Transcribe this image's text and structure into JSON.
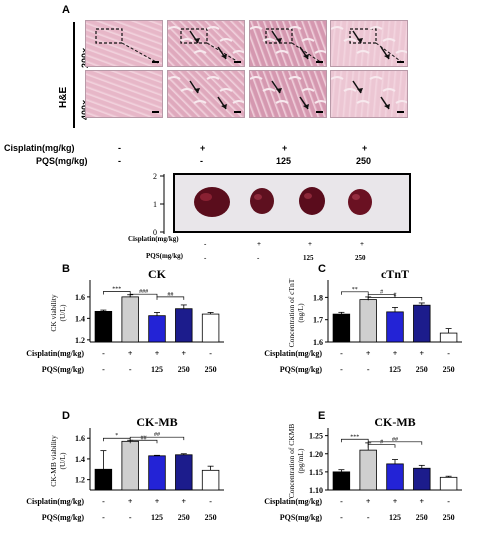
{
  "panel_a": {
    "label": "A",
    "stain": "H&E",
    "mag_top": "200×",
    "mag_bottom": "400×",
    "tissue_colors": [
      "#e7b7c8",
      "#dfa9bd",
      "#d598b0",
      "#ecc6d3"
    ],
    "cisplatin_label": "Cisplatin(mg/kg)",
    "pqs_label": "PQS(mg/kg)",
    "cisplatin_values": [
      "-",
      "+",
      "+",
      "+"
    ],
    "pqs_values": [
      "-",
      "-",
      "125",
      "250"
    ]
  },
  "heart_photo": {
    "ruler_ticks": [
      "2",
      "1",
      "0"
    ],
    "cisplatin_label": "Cisplatin(mg/kg)",
    "pqs_label": "PQS(mg/kg)",
    "cisplatin_values": [
      "-",
      "+",
      "+",
      "+"
    ],
    "pqs_values": [
      "-",
      "-",
      "125",
      "250"
    ]
  },
  "group_rows": {
    "cisplatin_label": "Cisplatin(mg/kg)",
    "pqs_label": "PQS(mg/kg)",
    "cisplatin_values": [
      "-",
      "+",
      "+",
      "+",
      "-"
    ],
    "pqs_values": [
      "-",
      "-",
      "125",
      "250",
      "250"
    ]
  },
  "chart_data": [
    {
      "panel": "B",
      "type": "bar",
      "title": "CK",
      "ylabel": "CK viability\n(U/L)",
      "yticks": [
        "1.6",
        "1.4",
        "1.2"
      ],
      "ylim": [
        1.18,
        1.72
      ],
      "values": [
        1.465,
        1.6,
        1.425,
        1.49,
        1.44
      ],
      "errors": [
        0.012,
        0.02,
        0.03,
        0.035,
        0.015
      ],
      "colors": [
        "#000000",
        "#cfcfcf",
        "#2323d6",
        "#1c1c8c",
        "#ffffff"
      ],
      "sig": [
        {
          "from": 0,
          "to": 1,
          "label": "***",
          "level": 1.65
        },
        {
          "from": 1,
          "to": 2,
          "label": "###",
          "level": 1.625
        },
        {
          "from": 2,
          "to": 3,
          "label": "##",
          "level": 1.6
        }
      ]
    },
    {
      "panel": "C",
      "type": "bar",
      "title": "cTnT",
      "ylabel": "Concentration of cTnT\n(ng/L)",
      "yticks": [
        "1.8",
        "1.7",
        "1.6"
      ],
      "ylim": [
        1.6,
        1.86
      ],
      "values": [
        1.725,
        1.79,
        1.735,
        1.765,
        1.64
      ],
      "errors": [
        0.008,
        0.012,
        0.02,
        0.01,
        0.02
      ],
      "colors": [
        "#000000",
        "#cfcfcf",
        "#2323d6",
        "#1c1c8c",
        "#ffffff"
      ],
      "sig": [
        {
          "from": 0,
          "to": 1,
          "label": "**",
          "level": 1.825
        },
        {
          "from": 1,
          "to": 2,
          "label": "#",
          "level": 1.812
        },
        {
          "from": 1,
          "to": 3,
          "label": "#",
          "level": 1.8
        }
      ]
    },
    {
      "panel": "D",
      "type": "bar",
      "title": "CK-MB",
      "ylabel": "CK-MB viability\n(U/L)",
      "yticks": [
        "1.6",
        "1.4",
        "1.2"
      ],
      "ylim": [
        1.1,
        1.66
      ],
      "values": [
        1.3,
        1.57,
        1.43,
        1.44,
        1.29
      ],
      "errors": [
        0.18,
        0.01,
        0.005,
        0.01,
        0.04
      ],
      "colors": [
        "#000000",
        "#cfcfcf",
        "#2323d6",
        "#1c1c8c",
        "#ffffff"
      ],
      "sig": [
        {
          "from": 0,
          "to": 1,
          "label": "*",
          "level": 1.6
        },
        {
          "from": 1,
          "to": 2,
          "label": "##",
          "level": 1.58
        },
        {
          "from": 1,
          "to": 3,
          "label": "##",
          "level": 1.61
        }
      ]
    },
    {
      "panel": "E",
      "type": "bar",
      "title": "CK-MB",
      "ylabel": "Concentration of CKMB\n(pg/mL)",
      "yticks": [
        "1.25",
        "1.20",
        "1.15",
        "1.10"
      ],
      "ylim": [
        1.1,
        1.26
      ],
      "values": [
        1.15,
        1.21,
        1.172,
        1.16,
        1.135
      ],
      "errors": [
        0.006,
        0.02,
        0.012,
        0.008,
        0.003
      ],
      "colors": [
        "#000000",
        "#cfcfcf",
        "#2323d6",
        "#1c1c8c",
        "#ffffff"
      ],
      "sig": [
        {
          "from": 0,
          "to": 1,
          "label": "***",
          "level": 1.24
        },
        {
          "from": 1,
          "to": 2,
          "label": "#",
          "level": 1.225
        },
        {
          "from": 1,
          "to": 3,
          "label": "##",
          "level": 1.233
        }
      ]
    }
  ]
}
